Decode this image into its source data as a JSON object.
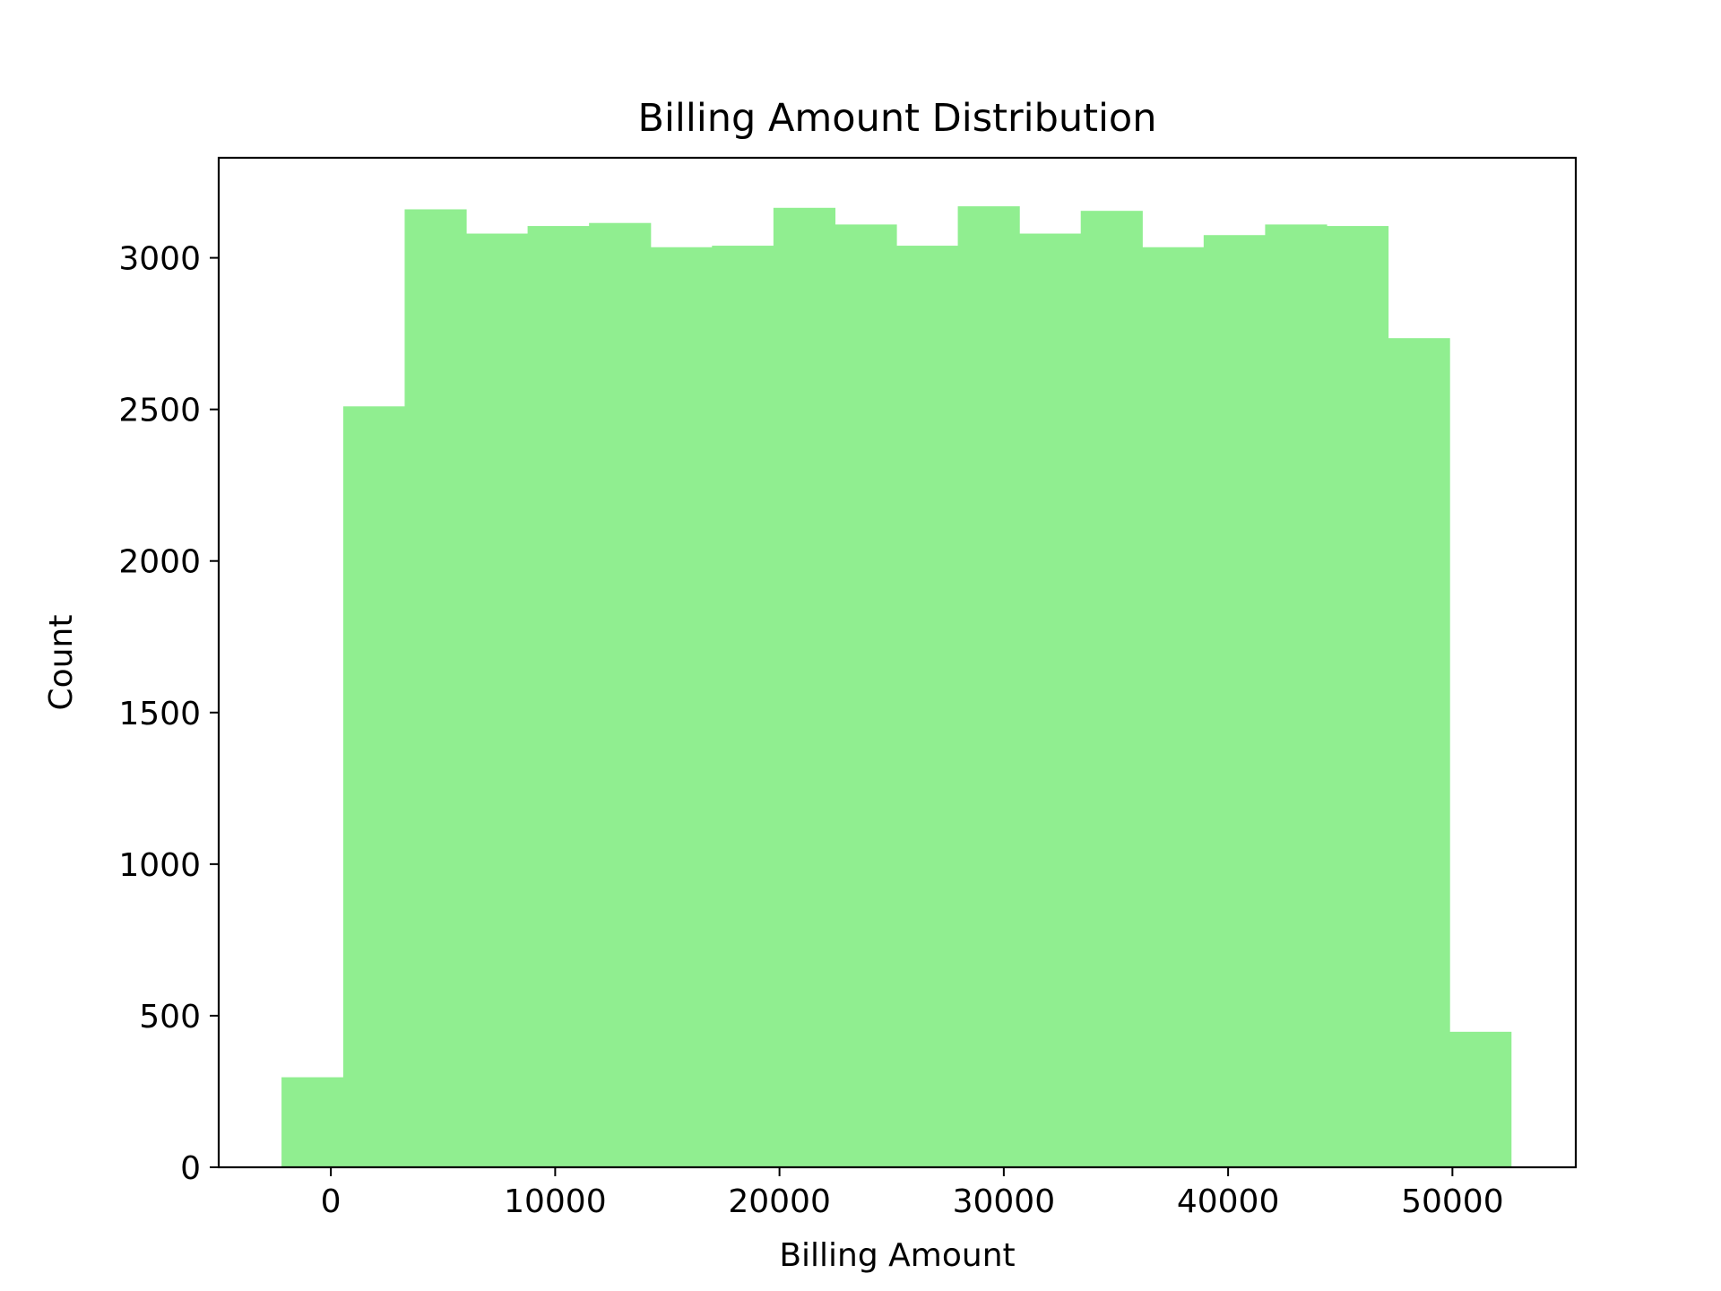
{
  "chart_data": {
    "type": "bar",
    "title": "Billing Amount Distribution",
    "xlabel": "Billing Amount",
    "ylabel": "Count",
    "xlim": [
      -5000,
      55500
    ],
    "ylim": [
      0,
      3330
    ],
    "xticks": [
      0,
      10000,
      20000,
      30000,
      40000,
      50000
    ],
    "yticks": [
      0,
      500,
      1000,
      1500,
      2000,
      2500,
      3000
    ],
    "bar_color": "#90ee90",
    "grid": false,
    "legend": "none",
    "bins": [
      {
        "x0": -2200,
        "x1": 550,
        "count": 297
      },
      {
        "x0": 550,
        "x1": 3290,
        "count": 2510
      },
      {
        "x0": 3290,
        "x1": 6030,
        "count": 3160
      },
      {
        "x0": 6030,
        "x1": 8770,
        "count": 3080
      },
      {
        "x0": 8770,
        "x1": 11510,
        "count": 3105
      },
      {
        "x0": 11510,
        "x1": 14250,
        "count": 3115
      },
      {
        "x0": 14250,
        "x1": 16990,
        "count": 3035
      },
      {
        "x0": 16990,
        "x1": 19730,
        "count": 3040
      },
      {
        "x0": 19730,
        "x1": 22470,
        "count": 3165
      },
      {
        "x0": 22470,
        "x1": 25210,
        "count": 3110
      },
      {
        "x0": 25210,
        "x1": 27950,
        "count": 3040
      },
      {
        "x0": 27950,
        "x1": 30690,
        "count": 3170
      },
      {
        "x0": 30690,
        "x1": 33430,
        "count": 3080
      },
      {
        "x0": 33430,
        "x1": 36170,
        "count": 3155
      },
      {
        "x0": 36170,
        "x1": 38910,
        "count": 3035
      },
      {
        "x0": 38910,
        "x1": 41650,
        "count": 3075
      },
      {
        "x0": 41650,
        "x1": 44390,
        "count": 3110
      },
      {
        "x0": 44390,
        "x1": 47130,
        "count": 3105
      },
      {
        "x0": 47130,
        "x1": 49870,
        "count": 2735
      },
      {
        "x0": 49870,
        "x1": 52610,
        "count": 447
      }
    ]
  }
}
